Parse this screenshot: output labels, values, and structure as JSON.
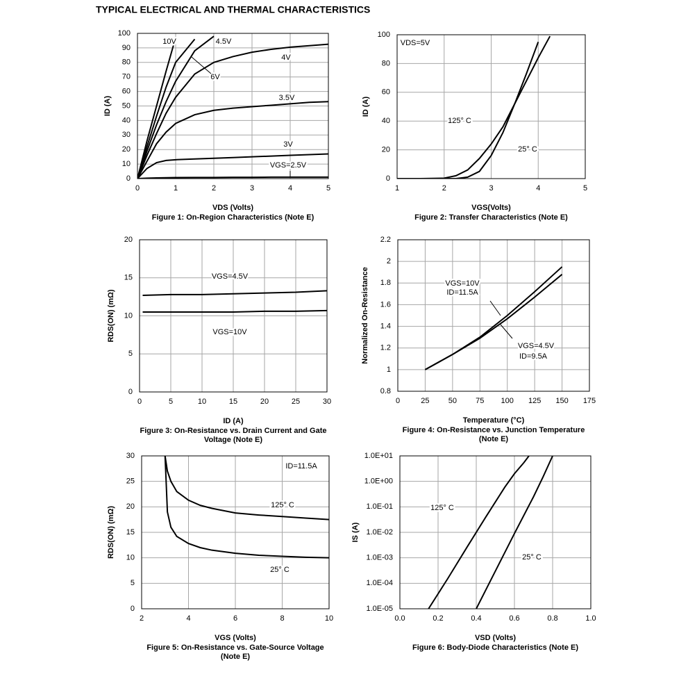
{
  "title": "TYPICAL ELECTRICAL AND THERMAL CHARACTERISTICS",
  "chart_data": [
    {
      "type": "line",
      "xlabel": "VDS (Volts)",
      "ylabel": "ID (A)",
      "caption": [
        "Figure 1: On-Region Characteristics (Note E)"
      ],
      "xlim": [
        0,
        5
      ],
      "ylim": [
        0,
        100
      ],
      "xticks": [
        0,
        1,
        2,
        3,
        4,
        5
      ],
      "yticks": [
        0,
        10,
        20,
        30,
        40,
        50,
        60,
        70,
        80,
        90,
        100
      ],
      "grid": true,
      "x": [
        0,
        0.25,
        0.5,
        0.75,
        1,
        1.5,
        2,
        2.5,
        3,
        3.5,
        4,
        4.5,
        5
      ],
      "series": [
        {
          "name": "10V",
          "color": "#000000",
          "values": [
            0,
            26,
            50,
            74,
            97,
            null,
            null,
            null,
            null,
            null,
            null,
            null,
            null
          ]
        },
        {
          "name": "6V",
          "color": "#000000",
          "values": [
            0,
            22,
            43,
            63,
            80,
            96,
            null,
            null,
            null,
            null,
            null,
            null,
            null
          ]
        },
        {
          "name": "4.5V",
          "color": "#000000",
          "values": [
            0,
            19,
            37,
            53,
            67,
            88,
            98,
            null,
            null,
            null,
            null,
            null,
            null
          ]
        },
        {
          "name": "4V",
          "color": "#000000",
          "values": [
            0,
            16,
            31,
            45,
            56,
            72,
            80,
            84,
            87,
            89,
            90.5,
            91.5,
            92.5
          ]
        },
        {
          "name": "3.5V",
          "color": "#000000",
          "values": [
            0,
            12,
            24,
            32,
            38,
            44,
            47,
            48.5,
            49.5,
            50.5,
            51.5,
            52.5,
            53
          ]
        },
        {
          "name": "3V",
          "color": "#000000",
          "values": [
            0,
            7,
            11,
            12.5,
            13,
            13.5,
            14,
            14.5,
            15,
            15.5,
            16,
            16.5,
            17
          ]
        },
        {
          "name": "VGS=2.5V",
          "color": "#000000",
          "values": [
            0,
            0.3,
            0.5,
            0.6,
            0.7,
            0.8,
            0.8,
            0.9,
            0.9,
            1,
            1,
            1,
            1
          ]
        }
      ],
      "annotations": []
    },
    {
      "type": "line",
      "xlabel": "VGS(Volts)",
      "ylabel": "ID (A)",
      "caption": [
        "Figure 2: Transfer Characteristics (Note E)"
      ],
      "xlim": [
        1,
        5
      ],
      "ylim": [
        0,
        100
      ],
      "xticks": [
        1,
        2,
        3,
        4,
        5
      ],
      "yticks": [
        0,
        20,
        40,
        60,
        80,
        100
      ],
      "grid": true,
      "x": [
        1,
        1.5,
        2,
        2.25,
        2.5,
        2.75,
        3,
        3.25,
        3.5,
        3.75,
        4,
        4.25
      ],
      "series": [
        {
          "name": "125° C",
          "color": "#000000",
          "values": [
            0,
            0,
            0.3,
            2,
            6,
            14,
            24,
            36,
            52,
            68,
            84,
            99
          ]
        },
        {
          "name": "25° C",
          "color": "#000000",
          "values": [
            0,
            0,
            0,
            0,
            1,
            5,
            16,
            32,
            52,
            73,
            95,
            null
          ]
        }
      ],
      "annotations": [
        "VDS=5V"
      ]
    },
    {
      "type": "line",
      "xlabel": "ID (A)",
      "ylabel": "RDS(ON) (mΩ)",
      "caption": [
        "Figure 3: On-Resistance vs. Drain Current and Gate",
        "Voltage (Note E)"
      ],
      "xlim": [
        0,
        30
      ],
      "ylim": [
        0,
        20
      ],
      "xticks": [
        0,
        5,
        10,
        15,
        20,
        25,
        30
      ],
      "yticks": [
        0,
        5,
        10,
        15,
        20
      ],
      "grid": true,
      "x": [
        0.5,
        5,
        10,
        15,
        20,
        25,
        30
      ],
      "series": [
        {
          "name": "VGS=4.5V",
          "color": "#000000",
          "values": [
            12.7,
            12.8,
            12.8,
            12.9,
            13.0,
            13.1,
            13.3
          ]
        },
        {
          "name": "VGS=10V",
          "color": "#000000",
          "values": [
            10.5,
            10.5,
            10.5,
            10.5,
            10.6,
            10.6,
            10.7
          ]
        }
      ],
      "annotations": []
    },
    {
      "type": "line",
      "xlabel": "Temperature (°C)",
      "ylabel": "Normalized On-Resistance",
      "caption": [
        "Figure 4: On-Resistance vs. Junction Temperature",
        "(Note E)"
      ],
      "xlim": [
        0,
        175
      ],
      "ylim": [
        0.8,
        2.2
      ],
      "xticks": [
        0,
        25,
        50,
        75,
        100,
        125,
        150,
        175
      ],
      "yticks": [
        0.8,
        1,
        1.2,
        1.4,
        1.6,
        1.8,
        2,
        2.2
      ],
      "grid": true,
      "x": [
        25,
        50,
        75,
        100,
        125,
        150
      ],
      "series": [
        {
          "name": "VGS=10V",
          "color": "#000000",
          "values": [
            1,
            1.14,
            1.3,
            1.5,
            1.72,
            1.95
          ]
        },
        {
          "name": "VGS=4.5V",
          "color": "#000000",
          "values": [
            1,
            1.14,
            1.29,
            1.47,
            1.67,
            1.88
          ]
        }
      ],
      "annotations": [
        "ID=11.5A",
        "ID=9.5A"
      ]
    },
    {
      "type": "line",
      "xlabel": "VGS (Volts)",
      "ylabel": "RDS(ON) (mΩ)",
      "caption": [
        "Figure 5: On-Resistance vs. Gate-Source Voltage",
        "(Note E)"
      ],
      "xlim": [
        2,
        10
      ],
      "ylim": [
        0,
        30
      ],
      "xticks": [
        2,
        4,
        6,
        8,
        10
      ],
      "yticks": [
        0,
        5,
        10,
        15,
        20,
        25,
        30
      ],
      "grid": true,
      "x": [
        3,
        3.1,
        3.25,
        3.5,
        4,
        4.5,
        5,
        6,
        7,
        8,
        9,
        10
      ],
      "series": [
        {
          "name": "125° C",
          "color": "#000000",
          "values": [
            30,
            27,
            25,
            23,
            21.3,
            20.3,
            19.7,
            18.8,
            18.4,
            18.1,
            17.8,
            17.5
          ]
        },
        {
          "name": "25° C",
          "color": "#000000",
          "values": [
            30,
            19,
            16,
            14.2,
            12.8,
            12,
            11.5,
            10.9,
            10.5,
            10.3,
            10.1,
            10
          ]
        }
      ],
      "annotations": [
        "ID=11.5A"
      ]
    },
    {
      "type": "line",
      "xlabel": "VSD (Volts)",
      "ylabel": "IS (A)",
      "caption": [
        "Figure 6: Body-Diode Characteristics (Note E)"
      ],
      "xlim": [
        0,
        1
      ],
      "ylim": [
        1e-05,
        10
      ],
      "log_y": true,
      "xticks": [
        {
          "value": 0,
          "label": "0.0"
        },
        0.2,
        0.4,
        0.6,
        0.8,
        {
          "value": 1,
          "label": "1.0"
        }
      ],
      "yticks": [
        {
          "value": 1e-05,
          "label": "1.0E-05"
        },
        {
          "value": 0.0001,
          "label": "1.0E-04"
        },
        {
          "value": 0.001,
          "label": "1.0E-03"
        },
        {
          "value": 0.01,
          "label": "1.0E-02"
        },
        {
          "value": 0.1,
          "label": "1.0E-01"
        },
        {
          "value": 1,
          "label": "1.0E+00"
        },
        {
          "value": 10,
          "label": "1.0E+01"
        }
      ],
      "grid": true,
      "series": [
        {
          "name": "125° C",
          "color": "#000000",
          "x": [
            0.15,
            0.25,
            0.35,
            0.45,
            0.55,
            0.6,
            0.65,
            0.676
          ],
          "values": [
            1e-05,
            0.00015,
            0.0025,
            0.04,
            0.6,
            2,
            5.5,
            10
          ]
        },
        {
          "name": "25° C",
          "color": "#000000",
          "x": [
            0.4,
            0.5,
            0.6,
            0.7,
            0.75,
            0.8
          ],
          "values": [
            1e-05,
            0.0003,
            0.009,
            0.25,
            1.5,
            10
          ]
        }
      ],
      "annotations": []
    }
  ]
}
